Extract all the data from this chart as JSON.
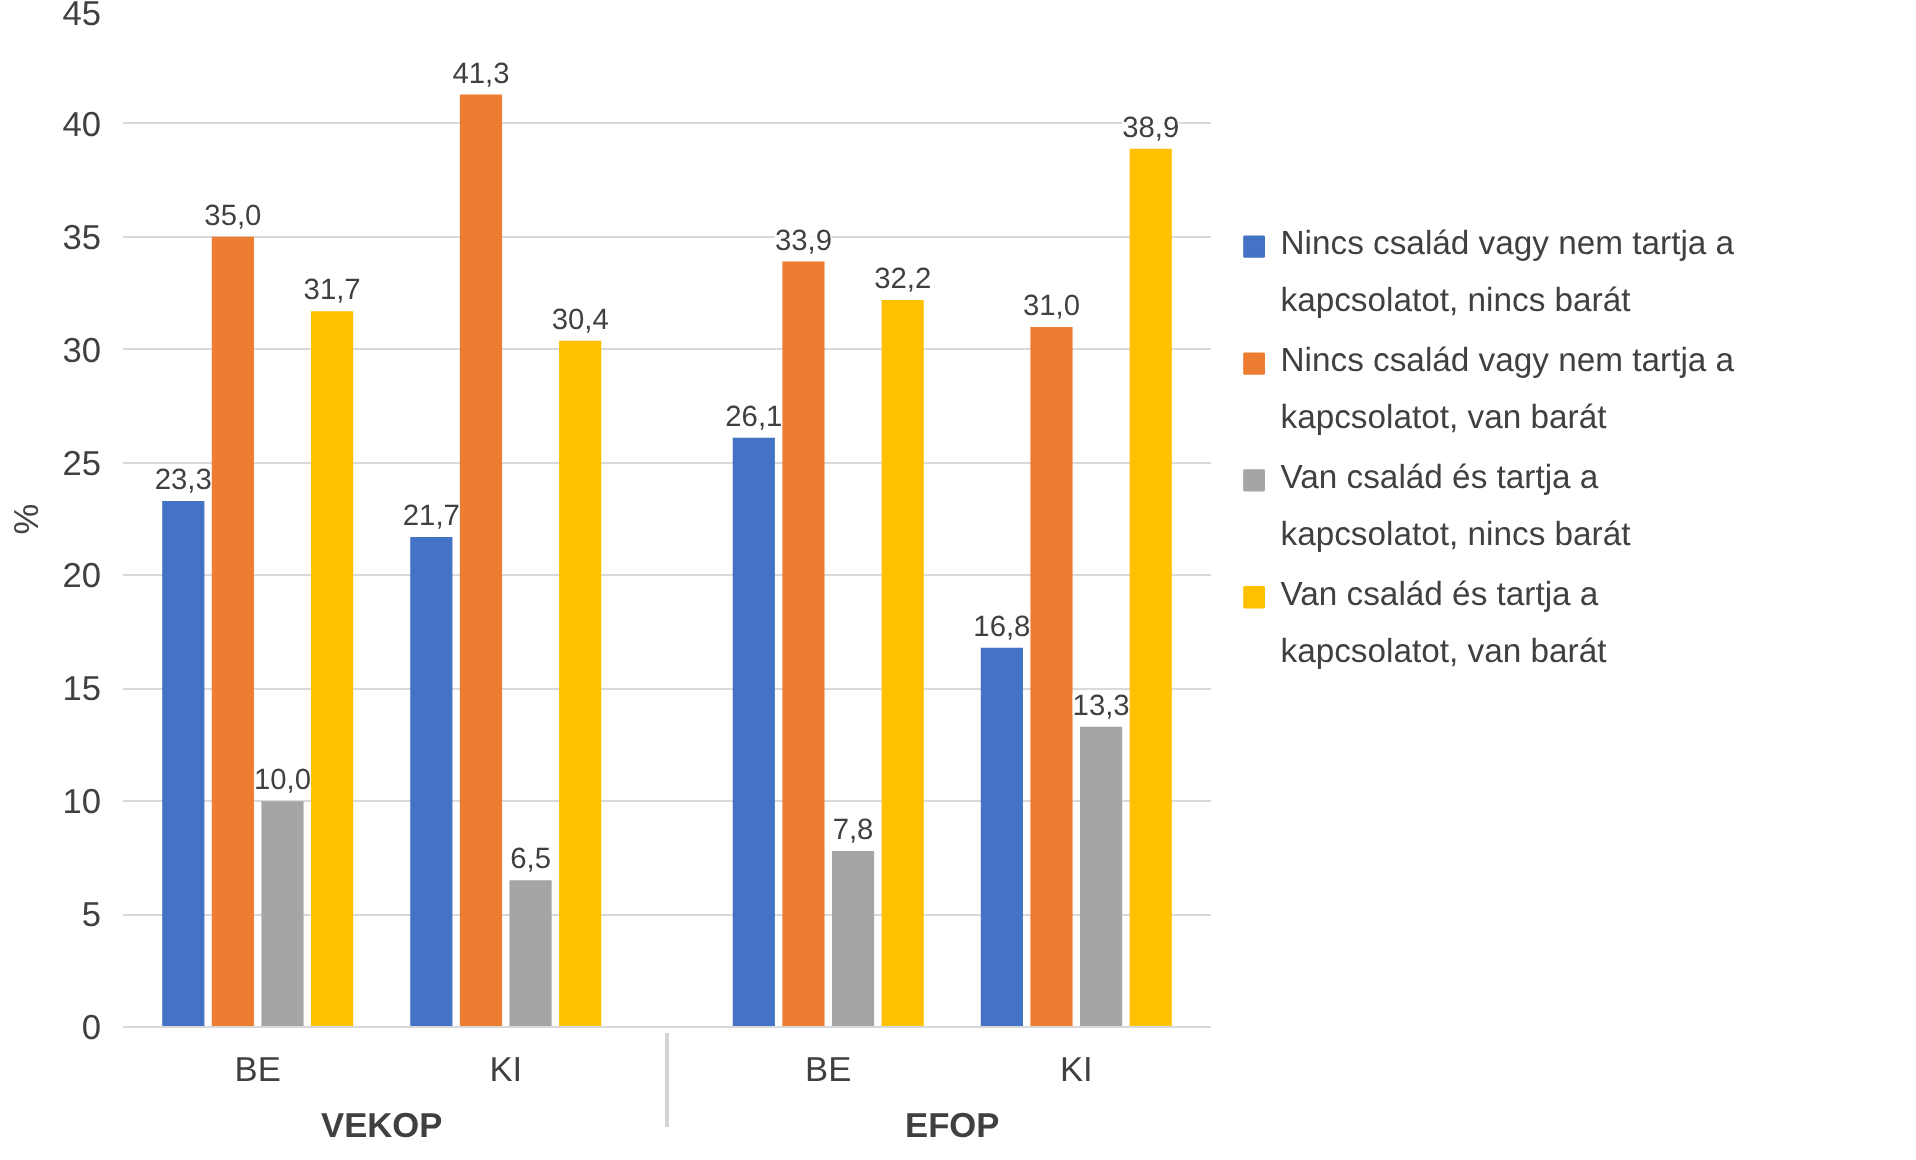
{
  "chart_data": {
    "type": "bar",
    "ylabel": "%",
    "categories": [
      "BE",
      "KI",
      "BE",
      "KI"
    ],
    "annotations": [
      "VEKOP",
      "EFOP"
    ],
    "ylim": [
      0,
      45
    ],
    "yticks": [
      0,
      5,
      10,
      15,
      20,
      25,
      30,
      35,
      40,
      45
    ],
    "grid": "y",
    "legend": "right",
    "series": [
      {
        "name": "Nincs család vagy nem tartja a kapcsolatot, nincs barát",
        "color": "#4472c4",
        "values": [
          23.3,
          21.7,
          26.1,
          16.8
        ],
        "value_labels": [
          "23,3",
          "21,7",
          "26,1",
          "16,8"
        ]
      },
      {
        "name": "Nincs család vagy nem tartja a kapcsolatot, van barát",
        "color": "#ed7d31",
        "values": [
          35.0,
          41.3,
          33.9,
          31.0
        ],
        "value_labels": [
          "35,0",
          "41,3",
          "33,9",
          "31,0"
        ]
      },
      {
        "name": "Van család és tartja a kapcsolatot, nincs barát",
        "color": "#a5a5a5",
        "values": [
          10.0,
          6.5,
          7.8,
          13.3
        ],
        "value_labels": [
          "10,0",
          "6,5",
          "7,8",
          "13,3"
        ]
      },
      {
        "name": "Van család és tartja a kapcsolatot, van barát",
        "color": "#ffc000",
        "values": [
          31.7,
          30.4,
          32.2,
          38.9
        ],
        "value_labels": [
          "31,7",
          "30,4",
          "32,2",
          "38,9"
        ]
      }
    ]
  }
}
